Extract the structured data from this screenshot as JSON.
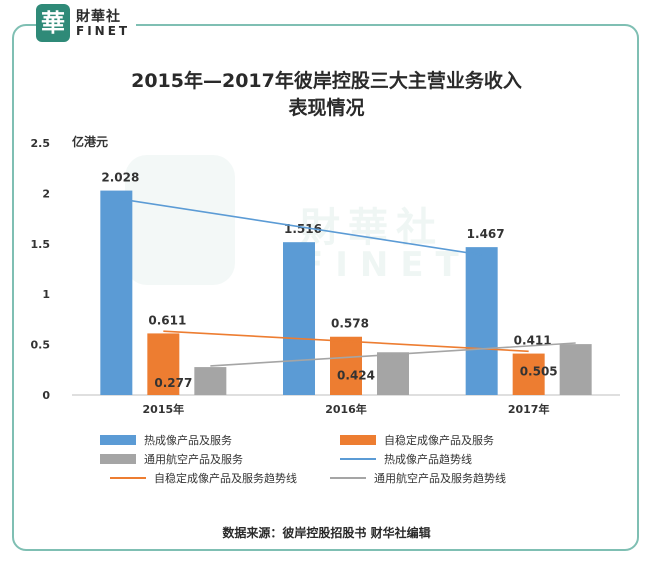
{
  "logo": {
    "cn": "財華社",
    "en": "FINET",
    "badge": "華"
  },
  "watermark": {
    "cn": "財華社",
    "en": "FINET"
  },
  "source": "数据来源：彼岸控股招股书   财华社编辑",
  "chart_data": {
    "type": "bar",
    "title_line1": "2015年—2017年彼岸控股三大主营业务收入",
    "title_line2": "表现情况",
    "unit": "亿港元",
    "categories": [
      "2015年",
      "2016年",
      "2017年"
    ],
    "ylim": [
      0,
      2.5
    ],
    "yticks": [
      "0",
      "0.5",
      "1",
      "1.5",
      "2",
      "2.5"
    ],
    "ytick_values": [
      0,
      0.5,
      1,
      1.5,
      2,
      2.5
    ],
    "grid": false,
    "legend_position": "bottom",
    "series": [
      {
        "name": "热成像产品及服务",
        "values": [
          2.028,
          1.516,
          1.467
        ],
        "labels": [
          "2.028",
          "1.516",
          "1.467"
        ],
        "color": "#5b9bd5"
      },
      {
        "name": "自稳定成像产品及服务",
        "values": [
          0.611,
          0.578,
          0.411
        ],
        "labels": [
          "0.611",
          "0.578",
          "0.411"
        ],
        "color": "#ed7d31"
      },
      {
        "name": "通用航空产品及服务",
        "values": [
          0.277,
          0.424,
          0.505
        ],
        "labels": [
          "0.277",
          "0.424",
          "0.505"
        ],
        "color": "#a5a5a5"
      }
    ],
    "trendlines": [
      {
        "name": "热成像产品趋势线",
        "series_index": 0,
        "color": "#5b9bd5"
      },
      {
        "name": "自稳定成像产品及服务趋势线",
        "series_index": 1,
        "color": "#ed7d31"
      },
      {
        "name": "通用航空产品及服务趋势线",
        "series_index": 2,
        "color": "#a5a5a5"
      }
    ]
  }
}
